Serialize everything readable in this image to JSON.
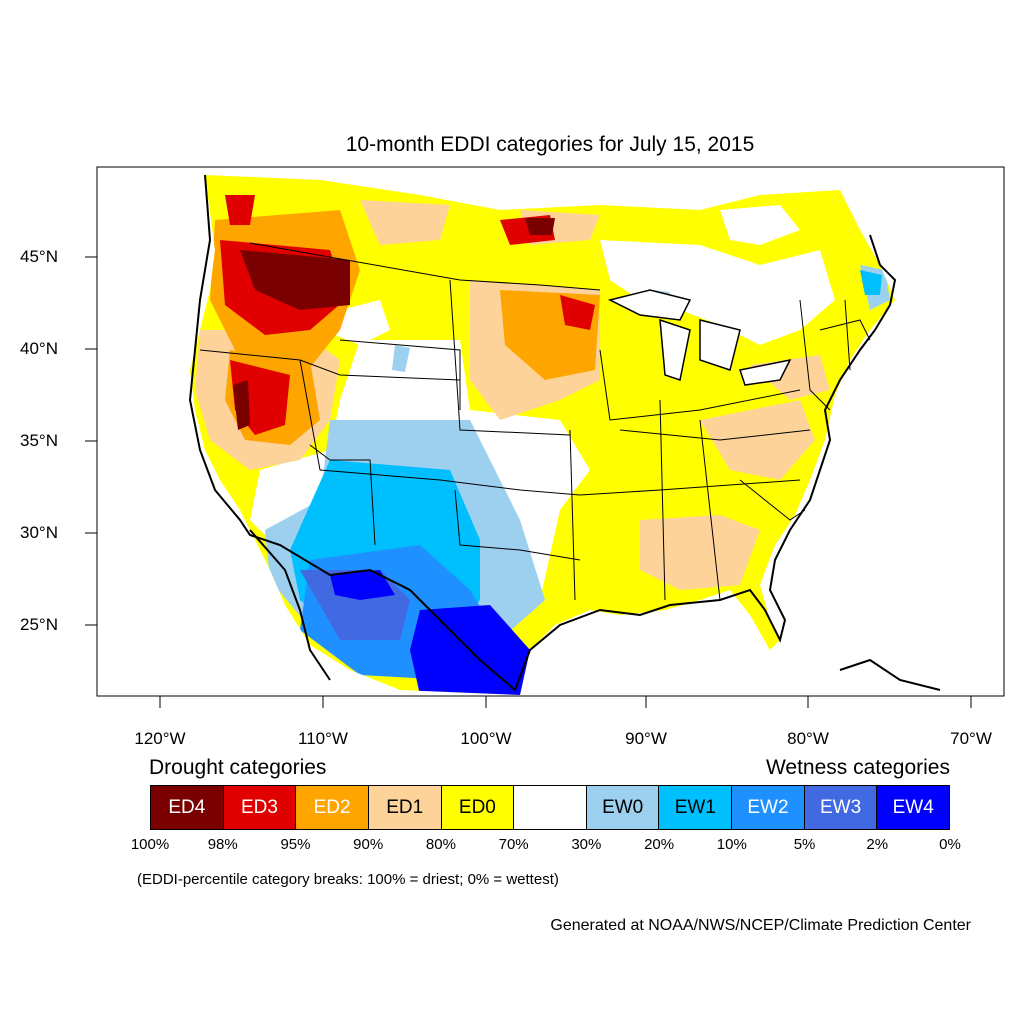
{
  "title": "10-month EDDI categories for July 15, 2015",
  "map": {
    "lat_ticks": [
      "45°N",
      "40°N",
      "35°N",
      "30°N",
      "25°N"
    ],
    "lon_ticks": [
      "120°W",
      "110°W",
      "100°W",
      "90°W",
      "80°W",
      "70°W"
    ]
  },
  "legend": {
    "drought_heading": "Drought categories",
    "wetness_heading": "Wetness categories",
    "categories": [
      {
        "label": "ED4",
        "color": "#7a0000",
        "text_color": "#ffffff"
      },
      {
        "label": "ED3",
        "color": "#e00000",
        "text_color": "#ffffff"
      },
      {
        "label": "ED2",
        "color": "#ffa500",
        "text_color": "#ffffff"
      },
      {
        "label": "ED1",
        "color": "#fdd39a",
        "text_color": "#000000"
      },
      {
        "label": "ED0",
        "color": "#ffff00",
        "text_color": "#000000"
      },
      {
        "label": "",
        "color": "#ffffff",
        "text_color": "#000000"
      },
      {
        "label": "EW0",
        "color": "#9dd0ef",
        "text_color": "#000000"
      },
      {
        "label": "EW1",
        "color": "#00bfff",
        "text_color": "#000000"
      },
      {
        "label": "EW2",
        "color": "#1e90ff",
        "text_color": "#ffffff"
      },
      {
        "label": "EW3",
        "color": "#4169e1",
        "text_color": "#ffffff"
      },
      {
        "label": "EW4",
        "color": "#0000ff",
        "text_color": "#ffffff"
      }
    ],
    "breaks": [
      "100%",
      "98%",
      "95%",
      "90%",
      "80%",
      "70%",
      "30%",
      "20%",
      "10%",
      "5%",
      "2%",
      "0%"
    ]
  },
  "note": "(EDDI-percentile category breaks: 100% = driest; 0% = wettest)",
  "credit": "Generated at NOAA/NWS/NCEP/Climate Prediction Center"
}
